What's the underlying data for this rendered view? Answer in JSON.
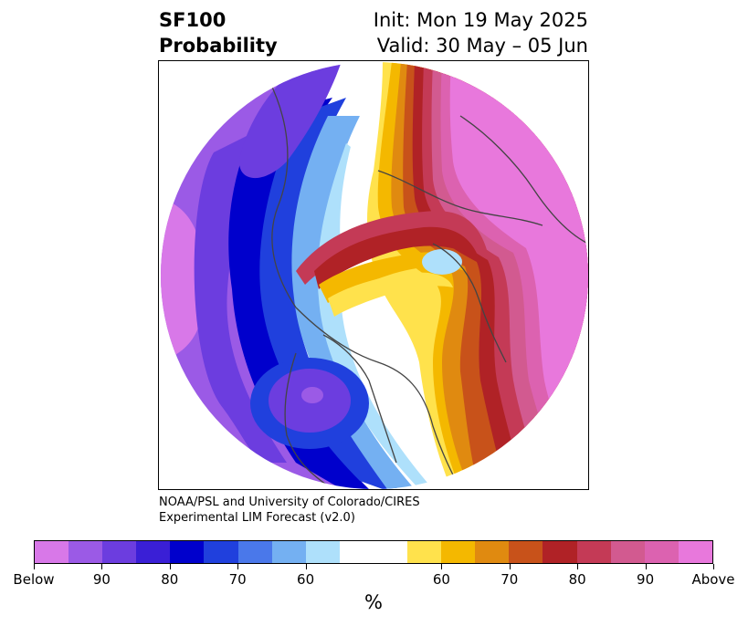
{
  "title": {
    "left_line1": "SF100",
    "left_line2": "Probability",
    "right_line1": "Init: Mon 19 May 2025",
    "right_line2": "Valid: 30 May – 05 Jun"
  },
  "credit": {
    "line1": "NOAA/PSL and University of Colorado/CIRES",
    "line2": "Experimental LIM Forecast (v2.0)"
  },
  "colorbar": {
    "units": "%",
    "colors": [
      "#d878e8",
      "#9b5ae6",
      "#6c3ddf",
      "#3a1fd6",
      "#0000cc",
      "#2040dd",
      "#4a78ea",
      "#74b0f2",
      "#aee0fb",
      "#ffffff",
      "#ffffff",
      "#ffe24c",
      "#f4b800",
      "#e08a10",
      "#c8521a",
      "#b02226",
      "#c43a56",
      "#d25a90",
      "#dc62b0",
      "#e878dc"
    ],
    "ticks": [
      "Below",
      "90",
      "80",
      "70",
      "60",
      "60",
      "70",
      "80",
      "90",
      "Above"
    ]
  },
  "map": {
    "projection": "north-polar-stereographic",
    "colors": {
      "below": "#d878e8",
      "blue90": "#9b5ae6",
      "blue85": "#6c3ddf",
      "blue80": "#3a1fd6",
      "blue75": "#0000cc",
      "blue70": "#2040dd",
      "blue65": "#4a78ea",
      "blue60": "#74b0f2",
      "blue55": "#aee0fb",
      "yellow": "#ffe24c",
      "gold": "#f4b800",
      "orange": "#e08a10",
      "rust": "#c8521a",
      "red": "#b02226",
      "crimson": "#c43a56",
      "rose": "#d25a90",
      "pink": "#dc62b0",
      "above": "#e878dc"
    }
  }
}
